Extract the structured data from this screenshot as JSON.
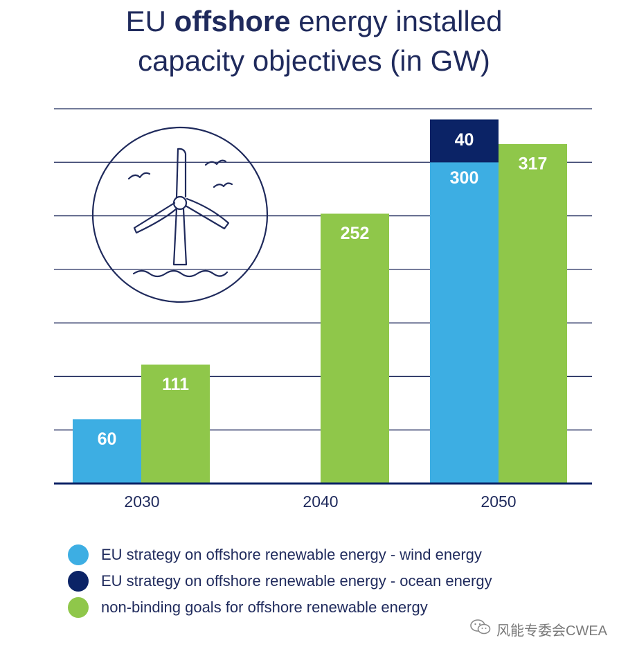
{
  "title": {
    "part1": "EU ",
    "bold": "offshore",
    "part2": " energy installed",
    "line2": "capacity objectives (in GW)"
  },
  "colors": {
    "wind": "#3daee3",
    "ocean": "#0b2366",
    "goals": "#8fc74a",
    "grid": "#1f2a5c",
    "text": "#1f2a5c"
  },
  "chart_data": {
    "type": "bar",
    "categories": [
      "2030",
      "2040",
      "2050"
    ],
    "series": [
      {
        "name": "EU strategy on offshore renewable energy - wind energy",
        "values": [
          60,
          null,
          300
        ],
        "color": "#3daee3"
      },
      {
        "name": "EU strategy on offshore renewable energy - ocean energy",
        "values": [
          null,
          null,
          40
        ],
        "color": "#0b2366",
        "stacked_on": "EU strategy on offshore renewable energy - wind energy"
      },
      {
        "name": "non-binding goals for offshore renewable energy",
        "values": [
          111,
          252,
          317
        ],
        "color": "#8fc74a"
      }
    ],
    "ylim": [
      0,
      350
    ],
    "grid": true,
    "legend_position": "bottom"
  },
  "icon": "offshore-wind-turbine-icon",
  "watermark": {
    "icon": "wechat-icon",
    "text": "风能专委会CWEA"
  }
}
